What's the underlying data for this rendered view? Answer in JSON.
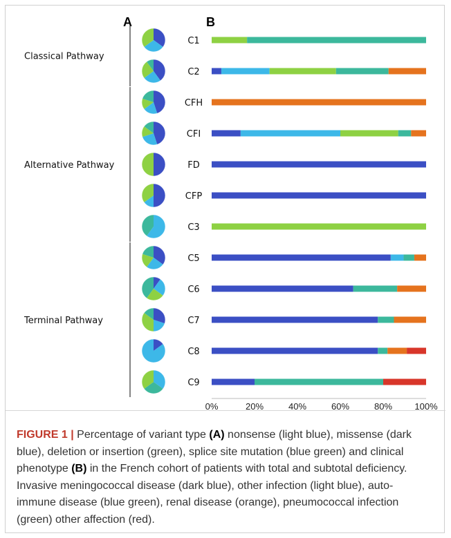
{
  "chart_data": {
    "type": "bar",
    "stacked": true,
    "orientation": "horizontal",
    "panel_a_label": "A",
    "panel_b_label": "B",
    "pathways": [
      {
        "label": "Classical Pathway",
        "categories": [
          "C1",
          "C2"
        ]
      },
      {
        "label": "Alternative Pathway",
        "categories": [
          "CFH",
          "CFI",
          "FD",
          "CFP",
          "C3"
        ]
      },
      {
        "label": "Terminal Pathway",
        "categories": [
          "C5",
          "C6",
          "C7",
          "C8",
          "C9"
        ]
      }
    ],
    "categories": [
      "C1",
      "C2",
      "CFH",
      "CFI",
      "FD",
      "CFP",
      "C3",
      "C5",
      "C6",
      "C7",
      "C8",
      "C9"
    ],
    "xlim": [
      0,
      100
    ],
    "xticks": [
      "0%",
      "20%",
      "40%",
      "60%",
      "80%",
      "100%"
    ],
    "colors": {
      "dark_blue": "#3b4fc4",
      "light_blue": "#3db8e8",
      "green": "#8ed143",
      "blue_green": "#3cb89c",
      "orange": "#e5731e",
      "red": "#d8362a"
    },
    "phenotype_series": [
      {
        "color_key": "dark_blue",
        "values": [
          0,
          4.5,
          0,
          13.5,
          100,
          100,
          0,
          83.5,
          66,
          77.5,
          77.5,
          20
        ]
      },
      {
        "color_key": "light_blue",
        "values": [
          0,
          22.5,
          0,
          46.5,
          0,
          0,
          0,
          6,
          0,
          0,
          0,
          0
        ]
      },
      {
        "color_key": "green",
        "values": [
          16.5,
          31,
          0,
          27,
          0,
          0,
          100,
          0,
          0,
          0,
          0,
          0
        ]
      },
      {
        "color_key": "blue_green",
        "values": [
          83.5,
          24.5,
          0,
          6,
          0,
          0,
          0,
          5,
          20.5,
          7.5,
          4.5,
          60
        ]
      },
      {
        "color_key": "orange",
        "values": [
          0,
          17.5,
          100,
          7,
          0,
          0,
          0,
          5.5,
          13.5,
          15,
          9,
          0
        ]
      },
      {
        "color_key": "red",
        "values": [
          0,
          0,
          0,
          0,
          0,
          0,
          0,
          0,
          0,
          0,
          9,
          20
        ]
      }
    ],
    "variant_pies": [
      {
        "category": "C1",
        "slices": [
          {
            "color_key": "dark_blue",
            "value": 35
          },
          {
            "color_key": "light_blue",
            "value": 30
          },
          {
            "color_key": "green",
            "value": 35
          }
        ]
      },
      {
        "category": "C2",
        "slices": [
          {
            "color_key": "dark_blue",
            "value": 40
          },
          {
            "color_key": "light_blue",
            "value": 25
          },
          {
            "color_key": "green",
            "value": 25
          },
          {
            "color_key": "blue_green",
            "value": 10
          }
        ]
      },
      {
        "category": "CFH",
        "slices": [
          {
            "color_key": "dark_blue",
            "value": 45
          },
          {
            "color_key": "light_blue",
            "value": 20
          },
          {
            "color_key": "green",
            "value": 15
          },
          {
            "color_key": "blue_green",
            "value": 20
          }
        ]
      },
      {
        "category": "CFI",
        "slices": [
          {
            "color_key": "dark_blue",
            "value": 45
          },
          {
            "color_key": "light_blue",
            "value": 25
          },
          {
            "color_key": "green",
            "value": 15
          },
          {
            "color_key": "blue_green",
            "value": 15
          }
        ]
      },
      {
        "category": "FD",
        "slices": [
          {
            "color_key": "dark_blue",
            "value": 50
          },
          {
            "color_key": "green",
            "value": 50
          }
        ]
      },
      {
        "category": "CFP",
        "slices": [
          {
            "color_key": "dark_blue",
            "value": 50
          },
          {
            "color_key": "light_blue",
            "value": 15
          },
          {
            "color_key": "green",
            "value": 35
          }
        ]
      },
      {
        "category": "C3",
        "slices": [
          {
            "color_key": "light_blue",
            "value": 60
          },
          {
            "color_key": "blue_green",
            "value": 40
          }
        ]
      },
      {
        "category": "C5",
        "slices": [
          {
            "color_key": "dark_blue",
            "value": 35
          },
          {
            "color_key": "light_blue",
            "value": 25
          },
          {
            "color_key": "green",
            "value": 20
          },
          {
            "color_key": "blue_green",
            "value": 20
          }
        ]
      },
      {
        "category": "C6",
        "slices": [
          {
            "color_key": "dark_blue",
            "value": 10
          },
          {
            "color_key": "light_blue",
            "value": 25
          },
          {
            "color_key": "green",
            "value": 25
          },
          {
            "color_key": "blue_green",
            "value": 40
          }
        ]
      },
      {
        "category": "C7",
        "slices": [
          {
            "color_key": "dark_blue",
            "value": 30
          },
          {
            "color_key": "light_blue",
            "value": 20
          },
          {
            "color_key": "green",
            "value": 35
          },
          {
            "color_key": "blue_green",
            "value": 15
          }
        ]
      },
      {
        "category": "C8",
        "slices": [
          {
            "color_key": "dark_blue",
            "value": 15
          },
          {
            "color_key": "light_blue",
            "value": 85
          }
        ]
      },
      {
        "category": "C9",
        "slices": [
          {
            "color_key": "light_blue",
            "value": 35
          },
          {
            "color_key": "blue_green",
            "value": 30
          },
          {
            "color_key": "green",
            "value": 35
          }
        ]
      }
    ]
  },
  "caption": {
    "figure_label": "FIGURE 1 |",
    "t1": " Percentage of variant type ",
    "b1": "(A)",
    "t2": " nonsense (light blue), missense (dark blue), deletion or insertion (green), splice site mutation (blue green) and clinical phenotype ",
    "b2": "(B)",
    "t3": " in the French cohort of patients with total and subtotal deficiency. Invasive meningococcal disease (dark blue), other infection (light blue), auto-immune disease (blue green), renal disease (orange), pneumococcal infection (green) other affection (red)."
  }
}
